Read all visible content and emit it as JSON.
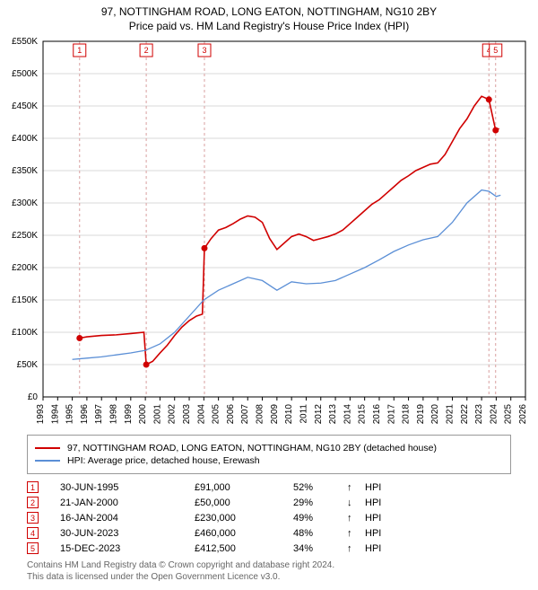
{
  "title": "97, NOTTINGHAM ROAD, LONG EATON, NOTTINGHAM, NG10 2BY",
  "subtitle": "Price paid vs. HM Land Registry's House Price Index (HPI)",
  "chart": {
    "type": "line",
    "background_color": "#ffffff",
    "plot_border_color": "#000000",
    "grid_color": "#d9d9d9",
    "marker_dashed_color": "#d9a0a0",
    "x": {
      "min": 1993,
      "max": 2026,
      "ticks": [
        1993,
        1994,
        1995,
        1996,
        1997,
        1998,
        1999,
        2000,
        2001,
        2002,
        2003,
        2004,
        2005,
        2006,
        2007,
        2008,
        2009,
        2010,
        2011,
        2012,
        2013,
        2014,
        2015,
        2016,
        2017,
        2018,
        2019,
        2020,
        2021,
        2022,
        2023,
        2024,
        2025,
        2026
      ]
    },
    "y": {
      "min": 0,
      "max": 550000,
      "tick_step": 50000,
      "tick_labels": [
        "£0",
        "£50K",
        "£100K",
        "£150K",
        "£200K",
        "£250K",
        "£300K",
        "£350K",
        "£400K",
        "£450K",
        "£500K",
        "£550K"
      ]
    },
    "series": [
      {
        "id": "price_paid",
        "label": "97, NOTTINGHAM ROAD, LONG EATON, NOTTINGHAM, NG10 2BY (detached house)",
        "color": "#d00000",
        "line_width": 1.6,
        "points": [
          [
            1995.5,
            91000
          ],
          [
            1996,
            93000
          ],
          [
            1997,
            95000
          ],
          [
            1998,
            96000
          ],
          [
            1999,
            98000
          ],
          [
            1999.9,
            100000
          ],
          [
            2000.06,
            50000
          ],
          [
            2000.5,
            55000
          ],
          [
            2001,
            68000
          ],
          [
            2001.5,
            80000
          ],
          [
            2002,
            95000
          ],
          [
            2002.5,
            108000
          ],
          [
            2003,
            118000
          ],
          [
            2003.5,
            125000
          ],
          [
            2003.9,
            128000
          ],
          [
            2004.04,
            230000
          ],
          [
            2004.5,
            245000
          ],
          [
            2005,
            258000
          ],
          [
            2005.5,
            262000
          ],
          [
            2006,
            268000
          ],
          [
            2006.5,
            275000
          ],
          [
            2007,
            280000
          ],
          [
            2007.5,
            278000
          ],
          [
            2008,
            270000
          ],
          [
            2008.5,
            245000
          ],
          [
            2009,
            228000
          ],
          [
            2009.5,
            238000
          ],
          [
            2010,
            248000
          ],
          [
            2010.5,
            252000
          ],
          [
            2011,
            248000
          ],
          [
            2011.5,
            242000
          ],
          [
            2012,
            245000
          ],
          [
            2012.5,
            248000
          ],
          [
            2013,
            252000
          ],
          [
            2013.5,
            258000
          ],
          [
            2014,
            268000
          ],
          [
            2014.5,
            278000
          ],
          [
            2015,
            288000
          ],
          [
            2015.5,
            298000
          ],
          [
            2016,
            305000
          ],
          [
            2016.5,
            315000
          ],
          [
            2017,
            325000
          ],
          [
            2017.5,
            335000
          ],
          [
            2018,
            342000
          ],
          [
            2018.5,
            350000
          ],
          [
            2019,
            355000
          ],
          [
            2019.5,
            360000
          ],
          [
            2020,
            362000
          ],
          [
            2020.5,
            375000
          ],
          [
            2021,
            395000
          ],
          [
            2021.5,
            415000
          ],
          [
            2022,
            430000
          ],
          [
            2022.5,
            450000
          ],
          [
            2023,
            465000
          ],
          [
            2023.5,
            460000
          ],
          [
            2023.96,
            412500
          ],
          [
            2024.2,
            415000
          ]
        ]
      },
      {
        "id": "hpi",
        "label": "HPI: Average price, detached house, Erewash",
        "color": "#5b8fd6",
        "line_width": 1.3,
        "points": [
          [
            1995,
            58000
          ],
          [
            1996,
            60000
          ],
          [
            1997,
            62000
          ],
          [
            1998,
            65000
          ],
          [
            1999,
            68000
          ],
          [
            2000,
            72000
          ],
          [
            2001,
            82000
          ],
          [
            2002,
            100000
          ],
          [
            2003,
            125000
          ],
          [
            2004,
            150000
          ],
          [
            2005,
            165000
          ],
          [
            2006,
            175000
          ],
          [
            2007,
            185000
          ],
          [
            2008,
            180000
          ],
          [
            2009,
            165000
          ],
          [
            2010,
            178000
          ],
          [
            2011,
            175000
          ],
          [
            2012,
            176000
          ],
          [
            2013,
            180000
          ],
          [
            2014,
            190000
          ],
          [
            2015,
            200000
          ],
          [
            2016,
            212000
          ],
          [
            2017,
            225000
          ],
          [
            2018,
            235000
          ],
          [
            2019,
            243000
          ],
          [
            2020,
            248000
          ],
          [
            2021,
            270000
          ],
          [
            2022,
            300000
          ],
          [
            2023,
            320000
          ],
          [
            2023.5,
            318000
          ],
          [
            2024,
            310000
          ],
          [
            2024.3,
            312000
          ]
        ]
      }
    ],
    "transaction_markers": [
      {
        "n": "1",
        "x": 1995.5,
        "y": 91000
      },
      {
        "n": "2",
        "x": 2000.06,
        "y": 50000
      },
      {
        "n": "3",
        "x": 2004.04,
        "y": 230000
      },
      {
        "n": "4",
        "x": 2023.5,
        "y": 460000
      },
      {
        "n": "5",
        "x": 2023.96,
        "y": 412500
      }
    ],
    "marker_box_numbers": [
      {
        "n": "1",
        "x": 1995.5
      },
      {
        "n": "2",
        "x": 2000.06
      },
      {
        "n": "3",
        "x": 2004.04
      },
      {
        "n": "4",
        "x": 2023.5
      },
      {
        "n": "5",
        "x": 2023.96
      }
    ]
  },
  "legend": {
    "items": [
      {
        "color": "#d00000",
        "label": "97, NOTTINGHAM ROAD, LONG EATON, NOTTINGHAM, NG10 2BY (detached house)"
      },
      {
        "color": "#5b8fd6",
        "label": "HPI: Average price, detached house, Erewash"
      }
    ]
  },
  "transactions": [
    {
      "n": "1",
      "date": "30-JUN-1995",
      "price": "£91,000",
      "pct": "52%",
      "arrow": "↑",
      "vs": "HPI",
      "color": "#d00000"
    },
    {
      "n": "2",
      "date": "21-JAN-2000",
      "price": "£50,000",
      "pct": "29%",
      "arrow": "↓",
      "vs": "HPI",
      "color": "#d00000"
    },
    {
      "n": "3",
      "date": "16-JAN-2004",
      "price": "£230,000",
      "pct": "49%",
      "arrow": "↑",
      "vs": "HPI",
      "color": "#d00000"
    },
    {
      "n": "4",
      "date": "30-JUN-2023",
      "price": "£460,000",
      "pct": "48%",
      "arrow": "↑",
      "vs": "HPI",
      "color": "#d00000"
    },
    {
      "n": "5",
      "date": "15-DEC-2023",
      "price": "£412,500",
      "pct": "34%",
      "arrow": "↑",
      "vs": "HPI",
      "color": "#d00000"
    }
  ],
  "footer": {
    "line1": "Contains HM Land Registry data © Crown copyright and database right 2024.",
    "line2": "This data is licensed under the Open Government Licence v3.0."
  }
}
